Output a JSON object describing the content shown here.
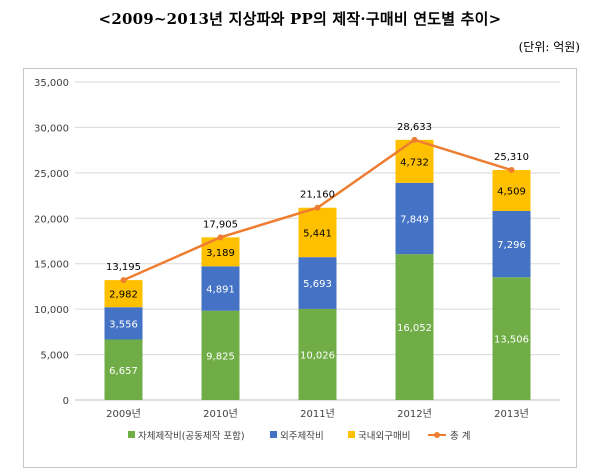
{
  "title": "<2009~2013년 지상파와 PP의 제작·구매비 연도별 추이>",
  "unit_note": "(단위: 억원)",
  "chart_data": {
    "type": "bar",
    "stacked": true,
    "categories": [
      "2009년",
      "2010년",
      "2011년",
      "2012년",
      "2013년"
    ],
    "ylim": [
      0,
      35000
    ],
    "yticks": [
      "0",
      "5,000",
      "10,000",
      "15,000",
      "20,000",
      "25,000",
      "30,000",
      "35,000"
    ],
    "grid": true,
    "legend_position": "bottom",
    "series": [
      {
        "name": "자체제작비(공동제작 포함)",
        "color": "#70ad47",
        "values": [
          6657,
          9825,
          10026,
          16052,
          13506
        ],
        "labels": [
          "6,657",
          "9,825",
          "10,026",
          "16,052",
          "13,506"
        ]
      },
      {
        "name": "외주제작비",
        "color": "#4472c4",
        "values": [
          3556,
          4891,
          5693,
          7849,
          7296
        ],
        "labels": [
          "3,556",
          "4,891",
          "5,693",
          "7,849",
          "7,296"
        ]
      },
      {
        "name": "국내외구매비",
        "color": "#ffc000",
        "values": [
          2982,
          3189,
          5441,
          4732,
          4509
        ],
        "labels": [
          "2,982",
          "3,189",
          "5,441",
          "4,732",
          "4,509"
        ]
      }
    ],
    "line": {
      "name": "총 계",
      "color": "#ed7d31",
      "type": "line",
      "values": [
        13195,
        17905,
        21160,
        28633,
        25310
      ],
      "labels": [
        "13,195",
        "17,905",
        "21,160",
        "28,633",
        "25,310"
      ]
    }
  }
}
